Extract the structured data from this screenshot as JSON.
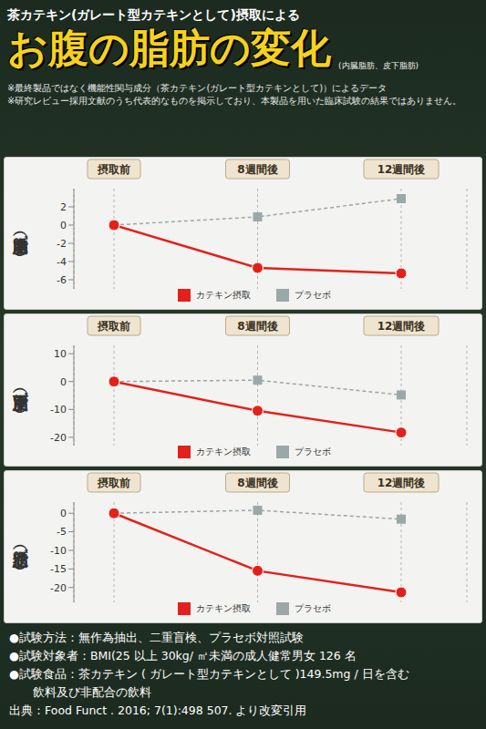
{
  "header": {
    "lead": "茶カテキン(ガレート型カテキンとして)摂取による",
    "title": "お腹の脂肪の変化",
    "subtitle": "(内臓脂肪、皮下脂肪)",
    "notes": [
      "※最終製品ではなく機能性関与成分（茶カテキン(ガレート型カテキンとして)）によるデータ",
      "※研究レビュー採用文献のうち代表的なものを掲示しており、本製品を用いた臨床試験の結果ではありません。"
    ]
  },
  "chart_data": [
    {
      "type": "line",
      "title": "内臓脂肪（㎠）",
      "categories": [
        "摂取前",
        "8週間後",
        "12週間後"
      ],
      "series": [
        {
          "name": "カテキン摂取",
          "color": "#e3211c",
          "marker": "circle",
          "line_style": "solid",
          "values": [
            0,
            -4.7,
            -5.3
          ]
        },
        {
          "name": "プラセボ",
          "color": "#9aa8a8",
          "marker": "square",
          "line_style": "dashed",
          "values": [
            0,
            0.9,
            2.9
          ]
        }
      ],
      "ylim": [
        -7,
        4
      ],
      "yticks": [
        -6,
        -4,
        -2,
        0,
        2
      ],
      "grid": true,
      "legend": "bottom"
    },
    {
      "type": "line",
      "title": "皮下脂肪（㎠）",
      "categories": [
        "摂取前",
        "8週間後",
        "12週間後"
      ],
      "series": [
        {
          "name": "カテキン摂取",
          "color": "#e3211c",
          "marker": "circle",
          "line_style": "solid",
          "values": [
            0,
            -10.5,
            -18.3
          ]
        },
        {
          "name": "プラセボ",
          "color": "#9aa8a8",
          "marker": "square",
          "line_style": "dashed",
          "values": [
            0,
            0.5,
            -4.8
          ]
        }
      ],
      "ylim": [
        -23,
        13
      ],
      "yticks": [
        -20,
        -10,
        0,
        10
      ],
      "grid": true,
      "legend": "bottom"
    },
    {
      "type": "line",
      "title": "総脂肪（㎠）",
      "categories": [
        "摂取前",
        "8週間後",
        "12週間後"
      ],
      "series": [
        {
          "name": "カテキン摂取",
          "color": "#e3211c",
          "marker": "circle",
          "line_style": "solid",
          "values": [
            0,
            -15.5,
            -21.3
          ]
        },
        {
          "name": "プラセボ",
          "color": "#9aa8a8",
          "marker": "square",
          "line_style": "dashed",
          "values": [
            0,
            0.8,
            -1.6
          ]
        }
      ],
      "ylim": [
        -24,
        3
      ],
      "yticks": [
        -20,
        -15,
        -10,
        -5,
        0
      ],
      "grid": true,
      "legend": "bottom"
    }
  ],
  "footer": [
    "●試験方法：無作為抽出、二重盲検、プラセボ対照試験",
    "●試験対象者：BMI(25 以上 30kg/ ㎡未満の成人健常男女 126 名",
    "●試験食品：茶カテキン ( ガレート型カテキンとして )149.5mg / 日を含む",
    "飲料及び非配合の飲料",
    "出典：Food Funct . 2016; 7(1):498 507. より改変引用"
  ]
}
